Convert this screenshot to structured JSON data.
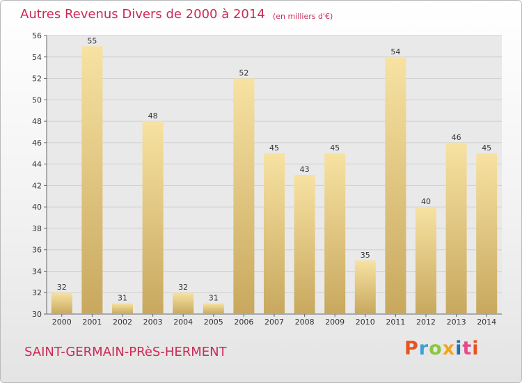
{
  "title": "Autres Revenus Divers de 2000 à 2014",
  "subtitle": "(en milliers d'€)",
  "location": "SAINT-GERMAIN-PRèS-HERMENT",
  "logo": "Proxiti",
  "colors": {
    "accent": "#cc2a56",
    "bar_light": "#f7e2a2",
    "bar_dark": "#c8a85e",
    "grid": "#cfcfcf"
  },
  "chart_data": {
    "type": "bar",
    "title": "Autres Revenus Divers de 2000 à 2014",
    "subtitle": "(en milliers d'€)",
    "categories": [
      "2000",
      "2001",
      "2002",
      "2003",
      "2004",
      "2005",
      "2006",
      "2007",
      "2008",
      "2009",
      "2010",
      "2011",
      "2012",
      "2013",
      "2014"
    ],
    "values": [
      32,
      55,
      31,
      48,
      32,
      31,
      52,
      45,
      43,
      45,
      35,
      54,
      40,
      46,
      45
    ],
    "ylim": [
      30,
      56
    ],
    "yticks": [
      30,
      32,
      34,
      36,
      38,
      40,
      42,
      44,
      46,
      48,
      50,
      52,
      54,
      56
    ],
    "grid": true,
    "legend": "none"
  }
}
